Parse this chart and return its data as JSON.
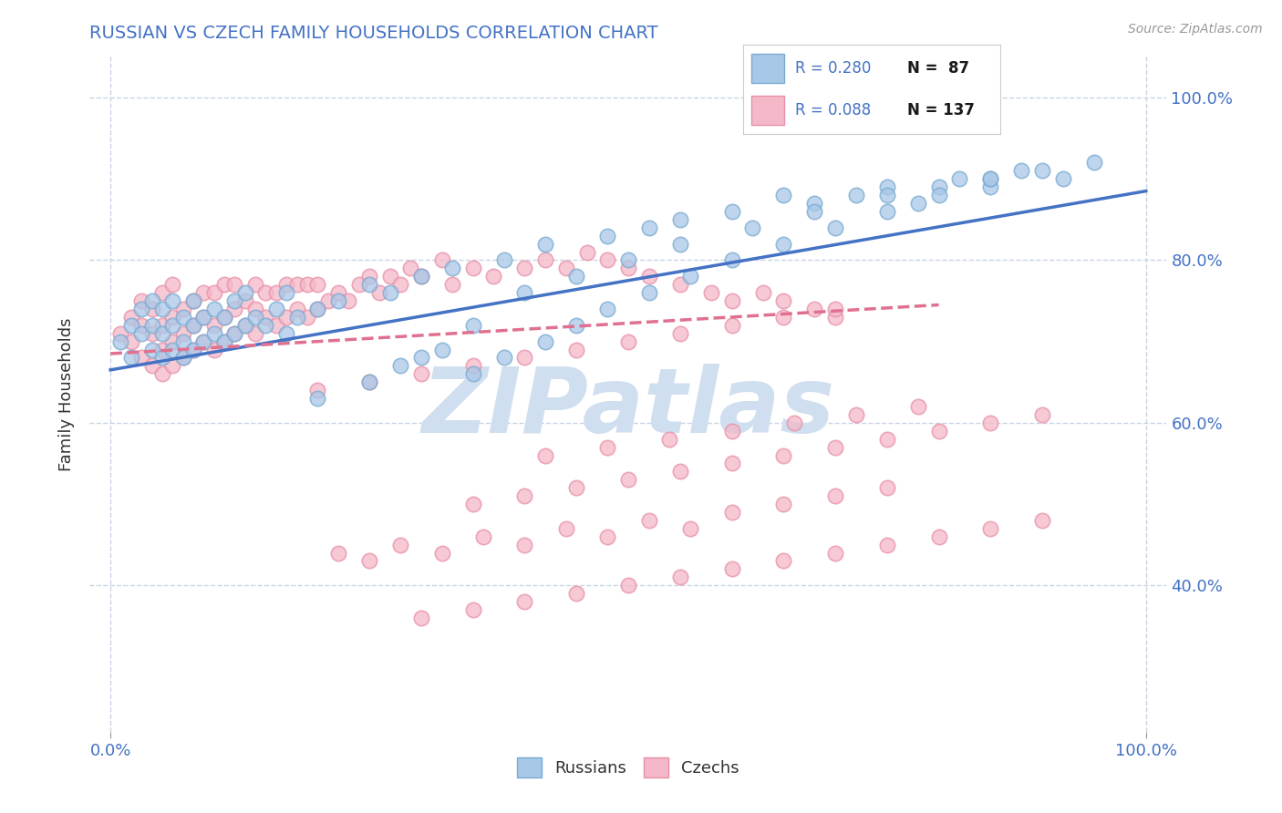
{
  "title": "RUSSIAN VS CZECH FAMILY HOUSEHOLDS CORRELATION CHART",
  "source_text": "Source: ZipAtlas.com",
  "ylabel": "Family Households",
  "xlim": [
    -0.02,
    1.02
  ],
  "ylim": [
    0.22,
    1.05
  ],
  "x_tick_positions": [
    0.0,
    1.0
  ],
  "x_tick_labels": [
    "0.0%",
    "100.0%"
  ],
  "y_tick_positions": [
    0.4,
    0.6,
    0.8,
    1.0
  ],
  "y_tick_labels": [
    "40.0%",
    "60.0%",
    "80.0%",
    "100.0%"
  ],
  "legend_r_russian": "R = 0.280",
  "legend_n_russian": "N =  87",
  "legend_r_czech": "R = 0.088",
  "legend_n_czech": "N = 137",
  "russian_color": "#a8c8e8",
  "czech_color": "#f4b8c8",
  "russian_edge": "#7aaad0",
  "czech_edge": "#e890a8",
  "trend_russian_color": "#4472c4",
  "trend_czech_color": "#e07090",
  "watermark_color": "#d0dff0",
  "background_color": "#ffffff",
  "grid_color": "#c8d4e4",
  "trend_russian": {
    "x_start": 0.0,
    "x_end": 1.0,
    "y_start": 0.665,
    "y_end": 0.885
  },
  "trend_czech": {
    "x_start": 0.0,
    "x_end": 0.8,
    "y_start": 0.685,
    "y_end": 0.745
  },
  "russian_x": [
    0.01,
    0.02,
    0.02,
    0.03,
    0.03,
    0.04,
    0.04,
    0.04,
    0.05,
    0.05,
    0.05,
    0.06,
    0.06,
    0.06,
    0.07,
    0.07,
    0.07,
    0.08,
    0.08,
    0.08,
    0.09,
    0.09,
    0.1,
    0.1,
    0.11,
    0.11,
    0.12,
    0.12,
    0.13,
    0.13,
    0.14,
    0.15,
    0.16,
    0.17,
    0.17,
    0.18,
    0.2,
    0.22,
    0.25,
    0.27,
    0.3,
    0.33,
    0.38,
    0.42,
    0.48,
    0.52,
    0.55,
    0.6,
    0.65,
    0.68,
    0.72,
    0.75,
    0.78,
    0.82,
    0.85,
    0.88,
    0.92,
    0.95,
    0.3,
    0.35,
    0.4,
    0.45,
    0.5,
    0.55,
    0.62,
    0.68,
    0.75,
    0.8,
    0.85,
    0.9,
    0.2,
    0.25,
    0.28,
    0.32,
    0.35,
    0.38,
    0.42,
    0.45,
    0.48,
    0.52,
    0.56,
    0.6,
    0.65,
    0.7,
    0.75,
    0.8,
    0.85
  ],
  "russian_y": [
    0.7,
    0.72,
    0.68,
    0.71,
    0.74,
    0.69,
    0.72,
    0.75,
    0.68,
    0.71,
    0.74,
    0.69,
    0.72,
    0.75,
    0.7,
    0.73,
    0.68,
    0.69,
    0.72,
    0.75,
    0.7,
    0.73,
    0.71,
    0.74,
    0.7,
    0.73,
    0.71,
    0.75,
    0.72,
    0.76,
    0.73,
    0.72,
    0.74,
    0.71,
    0.76,
    0.73,
    0.74,
    0.75,
    0.77,
    0.76,
    0.78,
    0.79,
    0.8,
    0.82,
    0.83,
    0.84,
    0.85,
    0.86,
    0.88,
    0.87,
    0.88,
    0.89,
    0.87,
    0.9,
    0.89,
    0.91,
    0.9,
    0.92,
    0.68,
    0.72,
    0.76,
    0.78,
    0.8,
    0.82,
    0.84,
    0.86,
    0.88,
    0.89,
    0.9,
    0.91,
    0.63,
    0.65,
    0.67,
    0.69,
    0.66,
    0.68,
    0.7,
    0.72,
    0.74,
    0.76,
    0.78,
    0.8,
    0.82,
    0.84,
    0.86,
    0.88,
    0.9
  ],
  "czech_x": [
    0.01,
    0.02,
    0.02,
    0.03,
    0.03,
    0.03,
    0.04,
    0.04,
    0.04,
    0.05,
    0.05,
    0.05,
    0.05,
    0.06,
    0.06,
    0.06,
    0.06,
    0.07,
    0.07,
    0.07,
    0.08,
    0.08,
    0.08,
    0.09,
    0.09,
    0.09,
    0.1,
    0.1,
    0.1,
    0.11,
    0.11,
    0.11,
    0.12,
    0.12,
    0.12,
    0.13,
    0.13,
    0.14,
    0.14,
    0.14,
    0.15,
    0.15,
    0.16,
    0.16,
    0.17,
    0.17,
    0.18,
    0.18,
    0.19,
    0.19,
    0.2,
    0.2,
    0.21,
    0.22,
    0.23,
    0.24,
    0.25,
    0.26,
    0.27,
    0.28,
    0.29,
    0.3,
    0.32,
    0.33,
    0.35,
    0.37,
    0.4,
    0.42,
    0.44,
    0.46,
    0.48,
    0.5,
    0.52,
    0.55,
    0.58,
    0.6,
    0.63,
    0.65,
    0.68,
    0.7,
    0.2,
    0.25,
    0.3,
    0.35,
    0.4,
    0.45,
    0.5,
    0.55,
    0.6,
    0.65,
    0.7,
    0.42,
    0.48,
    0.54,
    0.6,
    0.66,
    0.72,
    0.78,
    0.35,
    0.4,
    0.45,
    0.5,
    0.55,
    0.6,
    0.65,
    0.7,
    0.75,
    0.8,
    0.85,
    0.9,
    0.22,
    0.25,
    0.28,
    0.32,
    0.36,
    0.4,
    0.44,
    0.48,
    0.52,
    0.56,
    0.6,
    0.65,
    0.7,
    0.75,
    0.3,
    0.35,
    0.4,
    0.45,
    0.5,
    0.55,
    0.6,
    0.65,
    0.7,
    0.75,
    0.8,
    0.85,
    0.9
  ],
  "czech_y": [
    0.71,
    0.7,
    0.73,
    0.68,
    0.72,
    0.75,
    0.67,
    0.71,
    0.74,
    0.66,
    0.69,
    0.72,
    0.76,
    0.67,
    0.7,
    0.73,
    0.77,
    0.68,
    0.71,
    0.74,
    0.69,
    0.72,
    0.75,
    0.7,
    0.73,
    0.76,
    0.69,
    0.72,
    0.76,
    0.7,
    0.73,
    0.77,
    0.71,
    0.74,
    0.77,
    0.72,
    0.75,
    0.71,
    0.74,
    0.77,
    0.73,
    0.76,
    0.72,
    0.76,
    0.73,
    0.77,
    0.74,
    0.77,
    0.73,
    0.77,
    0.74,
    0.77,
    0.75,
    0.76,
    0.75,
    0.77,
    0.78,
    0.76,
    0.78,
    0.77,
    0.79,
    0.78,
    0.8,
    0.77,
    0.79,
    0.78,
    0.79,
    0.8,
    0.79,
    0.81,
    0.8,
    0.79,
    0.78,
    0.77,
    0.76,
    0.75,
    0.76,
    0.75,
    0.74,
    0.73,
    0.64,
    0.65,
    0.66,
    0.67,
    0.68,
    0.69,
    0.7,
    0.71,
    0.72,
    0.73,
    0.74,
    0.56,
    0.57,
    0.58,
    0.59,
    0.6,
    0.61,
    0.62,
    0.5,
    0.51,
    0.52,
    0.53,
    0.54,
    0.55,
    0.56,
    0.57,
    0.58,
    0.59,
    0.6,
    0.61,
    0.44,
    0.43,
    0.45,
    0.44,
    0.46,
    0.45,
    0.47,
    0.46,
    0.48,
    0.47,
    0.49,
    0.5,
    0.51,
    0.52,
    0.36,
    0.37,
    0.38,
    0.39,
    0.4,
    0.41,
    0.42,
    0.43,
    0.44,
    0.45,
    0.46,
    0.47,
    0.48
  ]
}
